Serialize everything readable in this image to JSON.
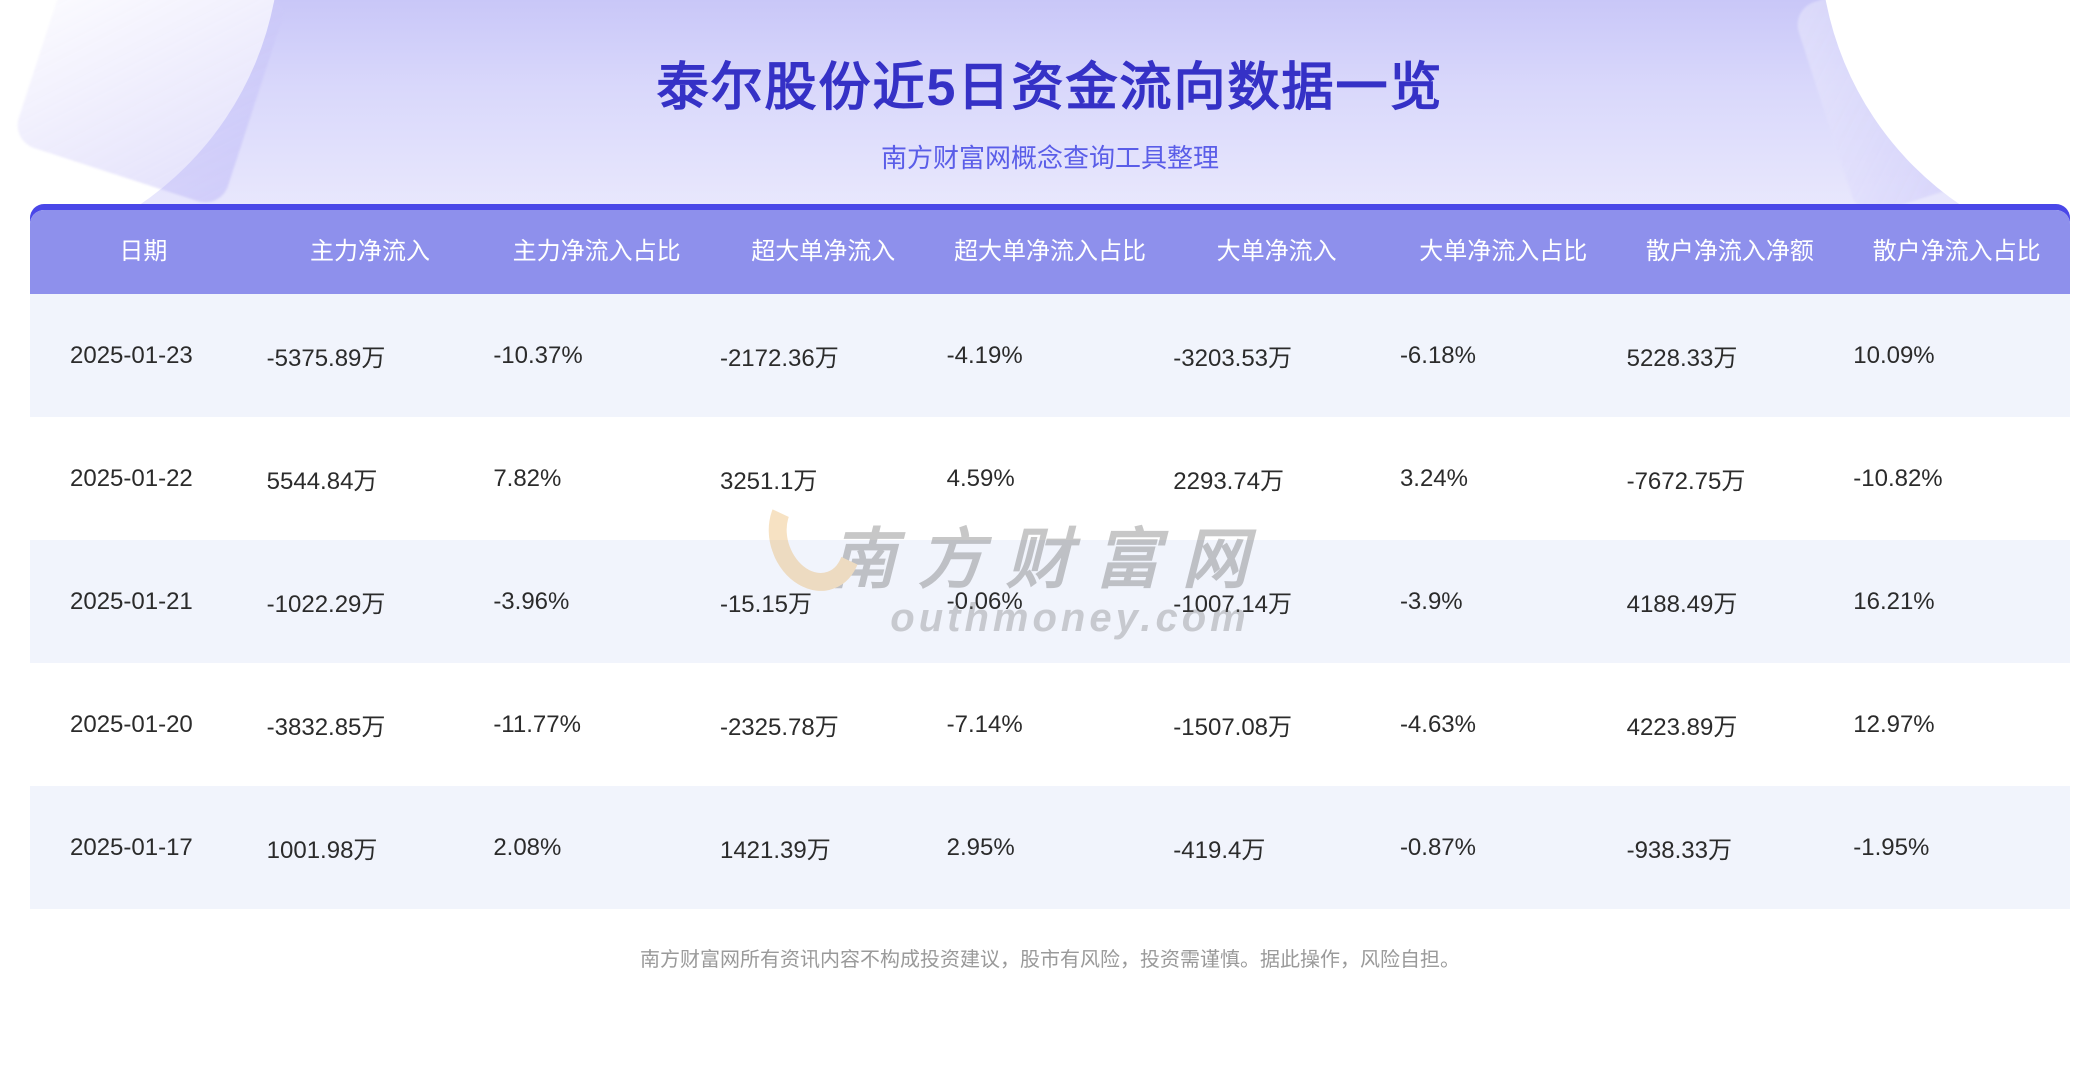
{
  "header": {
    "title": "泰尔股份近5日资金流向数据一览",
    "subtitle": "南方财富网概念查询工具整理",
    "title_color": "#3531c6",
    "subtitle_color": "#5a5de8",
    "bg_gradient_top": "#c9c7f8",
    "bg_gradient_bottom": "#eae9fd",
    "accent_bar_color": "#4a47e8",
    "title_fontsize": 52,
    "subtitle_fontsize": 26
  },
  "table": {
    "type": "table",
    "header_bg": "#8e90ec",
    "header_text_color": "#ffffff",
    "row_odd_bg": "#f1f4fc",
    "row_even_bg": "#ffffff",
    "cell_text_color": "#2b2b2b",
    "header_fontsize": 24,
    "cell_fontsize": 24,
    "columns": [
      "日期",
      "主力净流入",
      "主力净流入占比",
      "超大单净流入",
      "超大单净流入占比",
      "大单净流入",
      "大单净流入占比",
      "散户净流入净额",
      "散户净流入占比"
    ],
    "rows": [
      {
        "c0": "2025-01-23",
        "c1": "-5375.89万",
        "c2": "-10.37%",
        "c3": "-2172.36万",
        "c4": "-4.19%",
        "c5": "-3203.53万",
        "c6": "-6.18%",
        "c7": "5228.33万",
        "c8": "10.09%"
      },
      {
        "c0": "2025-01-22",
        "c1": "5544.84万",
        "c2": "7.82%",
        "c3": "3251.1万",
        "c4": "4.59%",
        "c5": "2293.74万",
        "c6": "3.24%",
        "c7": "-7672.75万",
        "c8": "-10.82%"
      },
      {
        "c0": "2025-01-21",
        "c1": "-1022.29万",
        "c2": "-3.96%",
        "c3": "-15.15万",
        "c4": "-0.06%",
        "c5": "-1007.14万",
        "c6": "-3.9%",
        "c7": "4188.49万",
        "c8": "16.21%"
      },
      {
        "c0": "2025-01-20",
        "c1": "-3832.85万",
        "c2": "-11.77%",
        "c3": "-2325.78万",
        "c4": "-7.14%",
        "c5": "-1507.08万",
        "c6": "-4.63%",
        "c7": "4223.89万",
        "c8": "12.97%"
      },
      {
        "c0": "2025-01-17",
        "c1": "1001.98万",
        "c2": "2.08%",
        "c3": "1421.39万",
        "c4": "2.95%",
        "c5": "-419.4万",
        "c6": "-0.87%",
        "c7": "-938.33万",
        "c8": "-1.95%"
      }
    ]
  },
  "watermark": {
    "cn": "南方财富网",
    "en": "outhmoney.com",
    "swoosh_color": "#e6a23c",
    "text_color": "#4a4a4a",
    "opacity": 0.3
  },
  "disclaimer": "南方财富网所有资讯内容不构成投资建议，股市有风险，投资需谨慎。据此操作，风险自担。",
  "disclaimer_color": "#9a9a9a"
}
